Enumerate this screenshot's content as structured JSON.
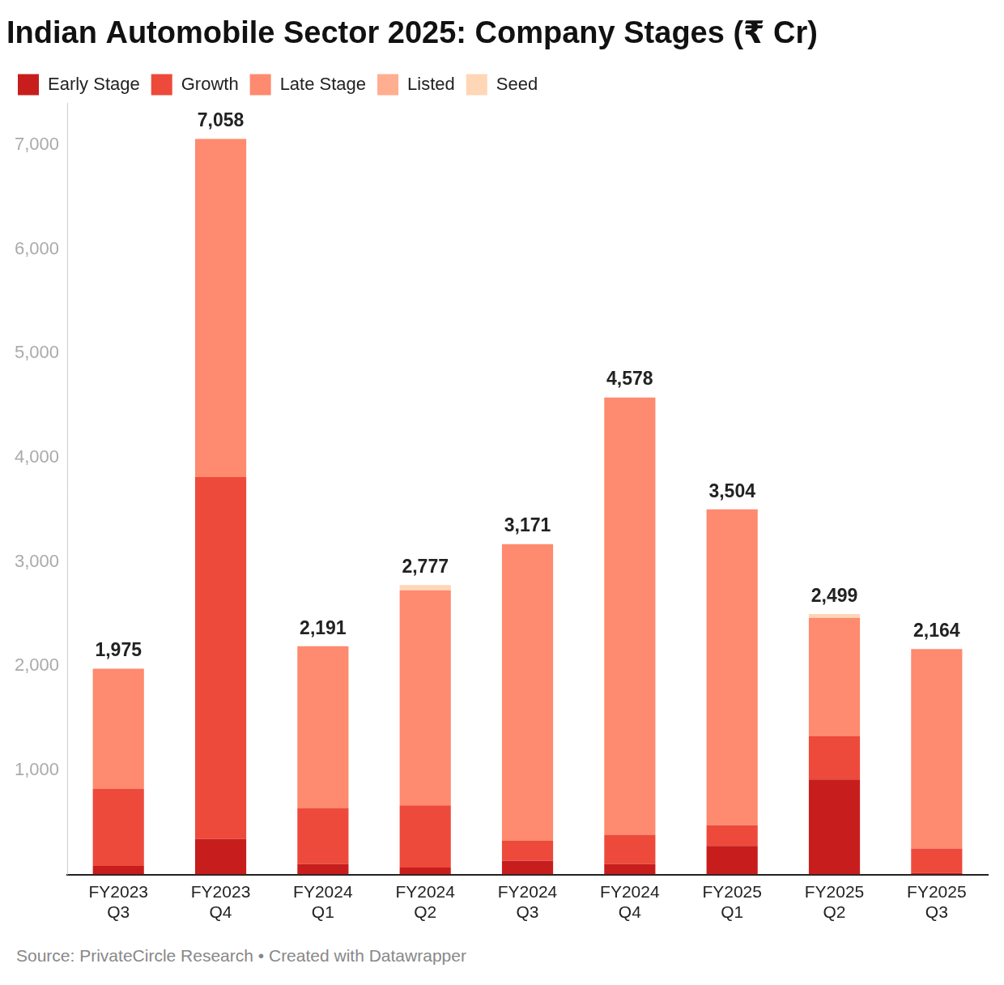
{
  "chart_data": {
    "type": "bar",
    "title": "Indian Automobile Sector 2025: Company Stages (₹ Cr)",
    "source": "Source: PrivateCircle Research • Created with Datawrapper",
    "categories": [
      "FY2023 Q3",
      "FY2023 Q4",
      "FY2024 Q1",
      "FY2024 Q2",
      "FY2024 Q3",
      "FY2024 Q4",
      "FY2025 Q1",
      "FY2025 Q2",
      "FY2025 Q3"
    ],
    "series": [
      {
        "name": "Early Stage",
        "color": "#c71e1d",
        "values": [
          83,
          340,
          100,
          66,
          133,
          100,
          274,
          912,
          17
        ]
      },
      {
        "name": "Growth",
        "color": "#ed4a3b",
        "values": [
          738,
          3474,
          538,
          597,
          190,
          281,
          199,
          415,
          232
        ]
      },
      {
        "name": "Late Stage",
        "color": "#fe8a6f",
        "values": [
          1154,
          3244,
          1553,
          2065,
          2848,
          4197,
          3031,
          1135,
          1915
        ]
      },
      {
        "name": "Listed",
        "color": "#ffae8f",
        "values": [
          0,
          0,
          0,
          0,
          0,
          0,
          0,
          0,
          0
        ]
      },
      {
        "name": "Seed",
        "color": "#ffd6b6",
        "values": [
          0,
          0,
          0,
          49,
          0,
          0,
          0,
          37,
          0
        ]
      }
    ],
    "totals": [
      1975,
      7058,
      2191,
      2777,
      3171,
      4578,
      3504,
      2499,
      2164
    ],
    "total_labels": [
      "1,975",
      "7,058",
      "2,191",
      "2,777",
      "3,171",
      "4,578",
      "3,504",
      "2,499",
      "2,164"
    ],
    "ylim": [
      0,
      7400
    ],
    "yticks": [
      {
        "value": 1000,
        "label": "1,000"
      },
      {
        "value": 2000,
        "label": "2,000"
      },
      {
        "value": 3000,
        "label": "3,000"
      },
      {
        "value": 4000,
        "label": "4,000"
      },
      {
        "value": 5000,
        "label": "5,000"
      },
      {
        "value": 6000,
        "label": "6,000"
      },
      {
        "value": 7000,
        "label": "7,000"
      }
    ],
    "stacked": true,
    "grid": false,
    "legend": "top-left",
    "data_labels": true
  }
}
